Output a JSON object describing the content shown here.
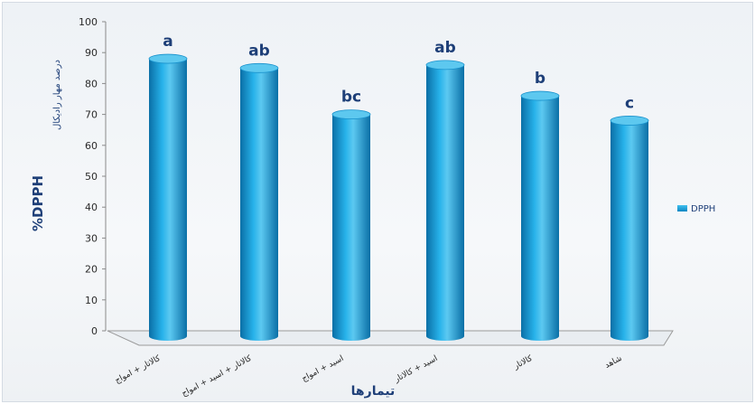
{
  "chart_data": {
    "type": "bar",
    "categories": [
      "کالاتار + امواج",
      "کالاتار + اسید + امواج",
      "اسید + امواج",
      "اسید + کالاتار",
      "کالاتار",
      "شاهد"
    ],
    "series": [
      {
        "name": "DPPH",
        "values": [
          88,
          85,
          70,
          86,
          76,
          68
        ]
      }
    ],
    "significance": [
      "a",
      "ab",
      "bc",
      "ab",
      "b",
      "c"
    ],
    "ylabel": "%DPPH",
    "ylabel_secondary": "درصد مهار رادیکال",
    "xlabel": "تیمارها",
    "yticks": [
      0,
      10,
      20,
      30,
      40,
      50,
      60,
      70,
      80,
      90,
      100
    ],
    "ylim": [
      0,
      100
    ],
    "legend_position": "right",
    "colors": {
      "bar": "#1aa3dd",
      "bar_dark": "#0a72a8",
      "bar_light": "#7fd4f3",
      "labels": "#1e3f78"
    }
  }
}
